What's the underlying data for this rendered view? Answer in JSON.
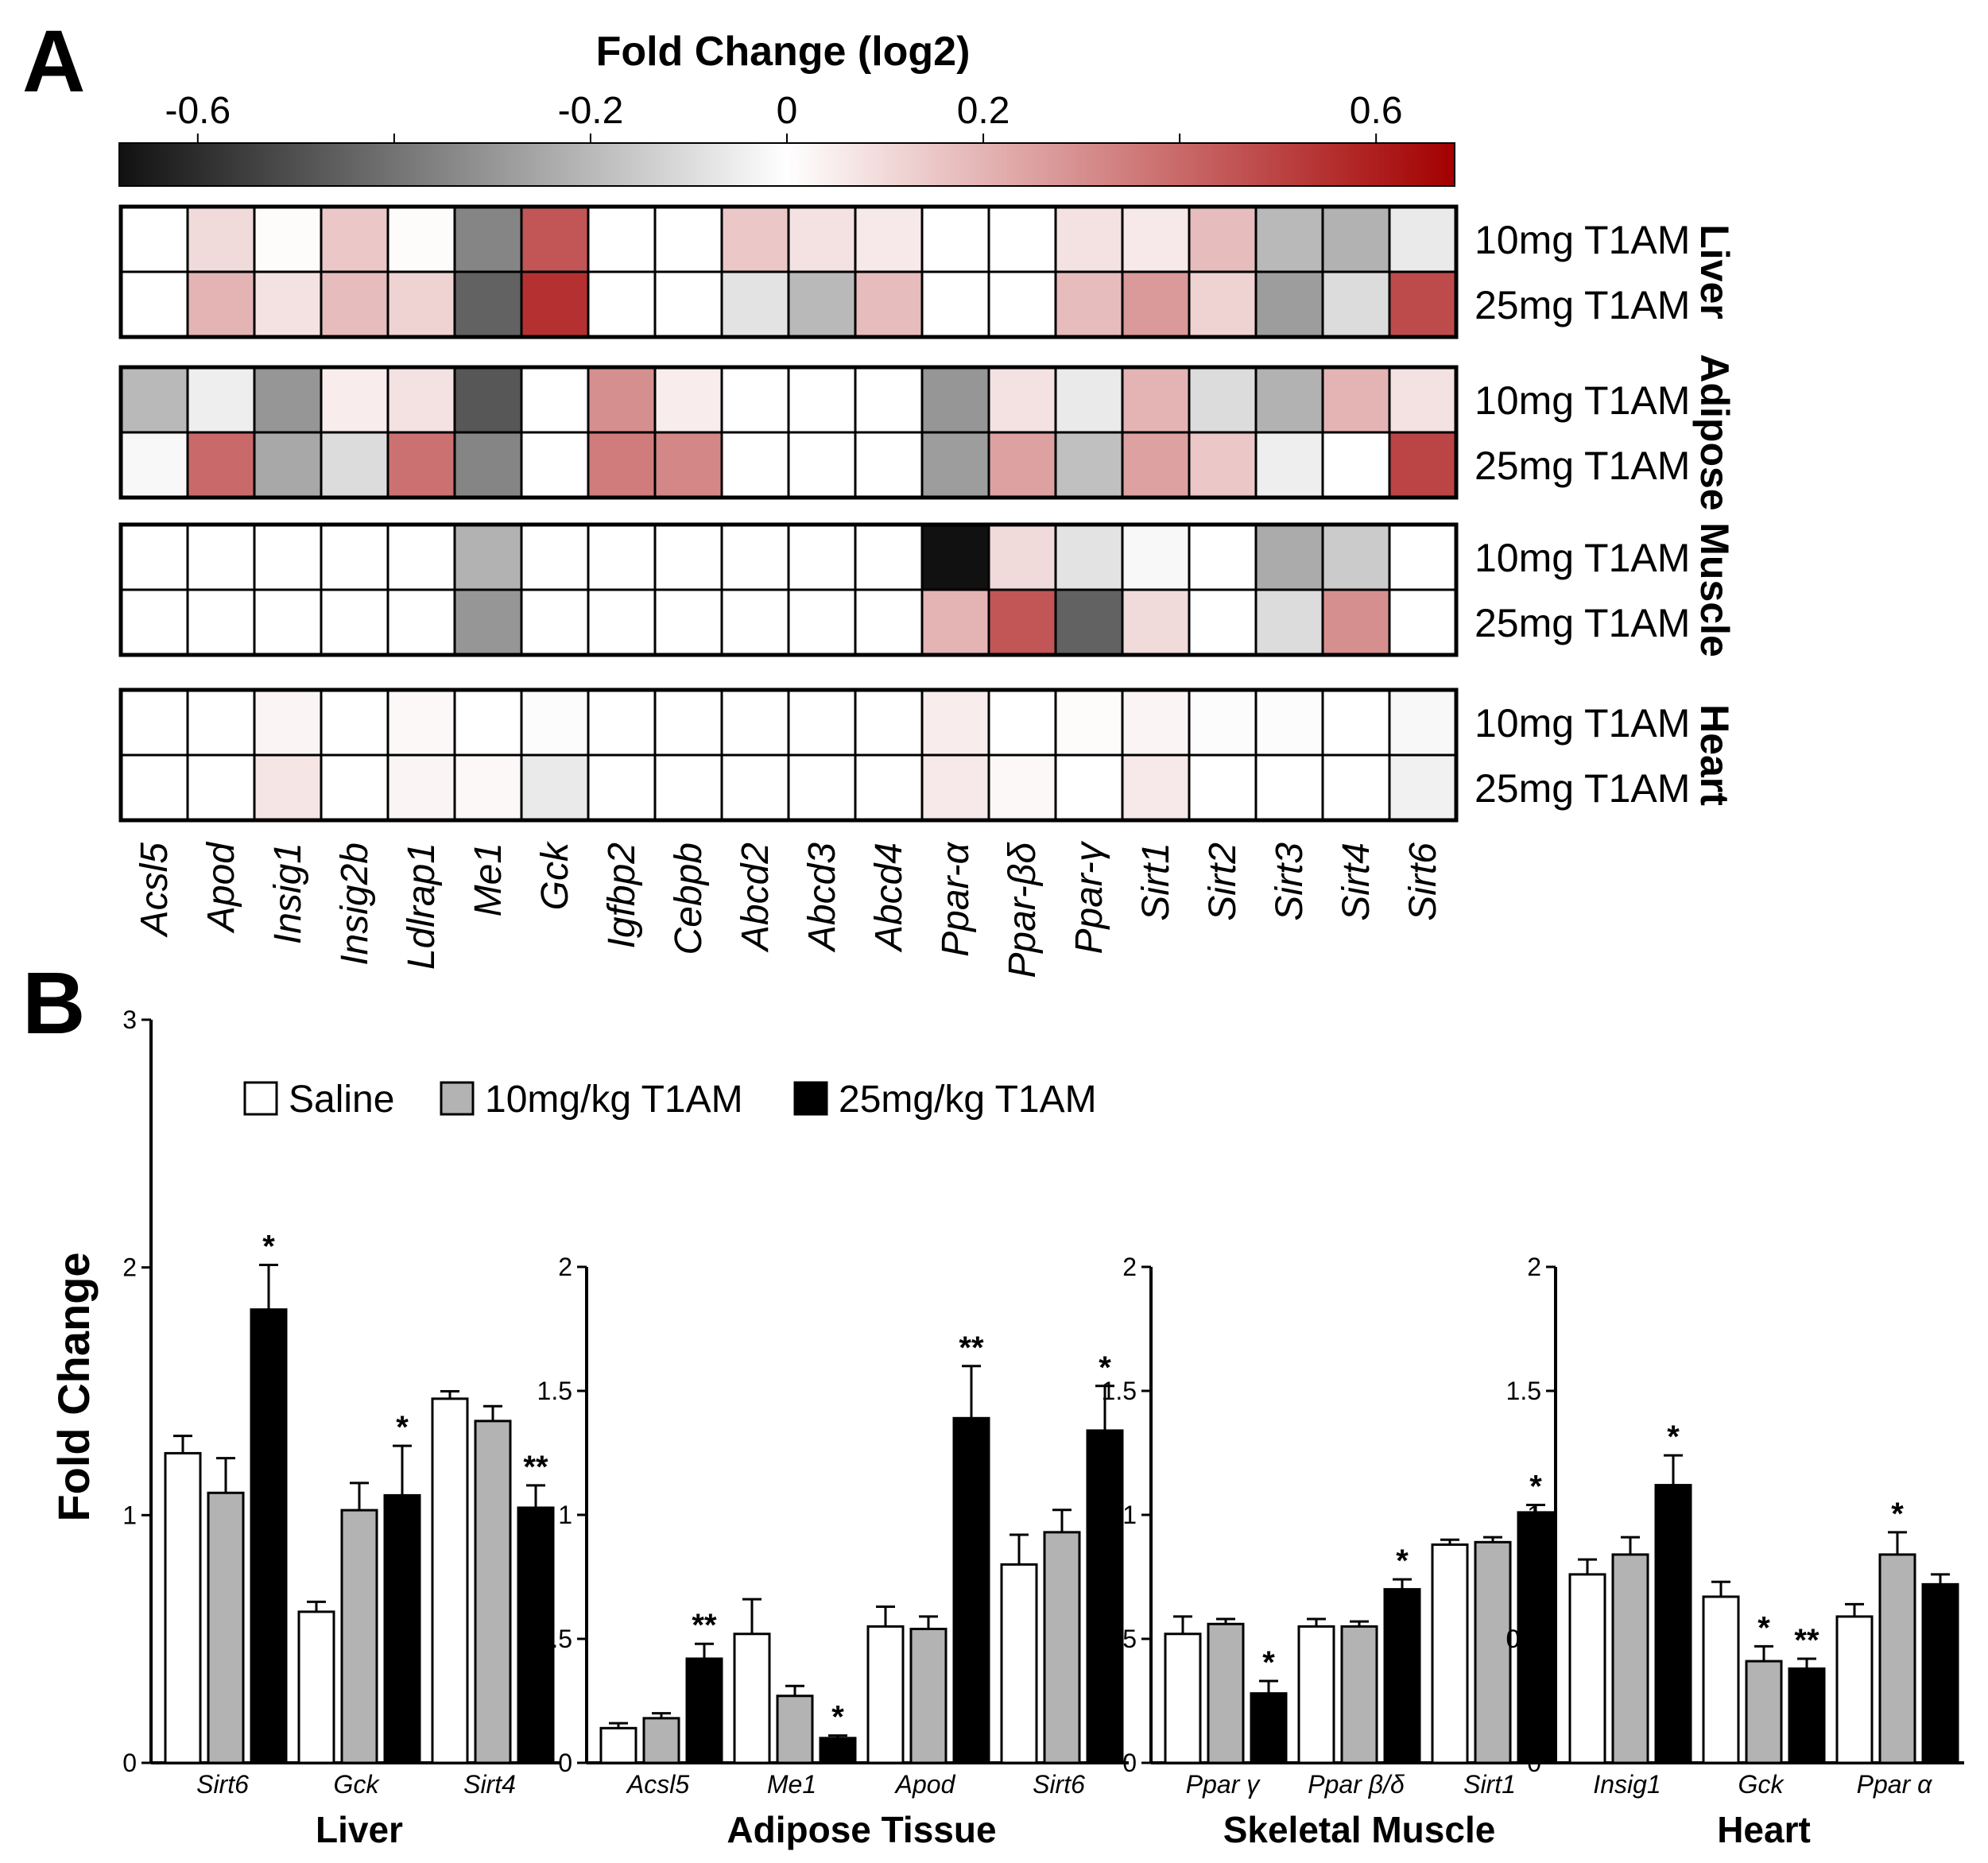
{
  "panel_a_letter": "A",
  "panel_b_letter": "B",
  "chart_data": [
    {
      "type": "heatmap",
      "panel": "A",
      "colorbar": {
        "title": "Fold Change (log2)",
        "range": [
          -0.68,
          0.68
        ],
        "tick_values": [
          -0.6,
          -0.2,
          0,
          0.2,
          0.6
        ],
        "tick_labels": [
          "-0.6",
          "-0.2",
          "0",
          "0.2",
          "0.6"
        ],
        "minor_ticks": [
          -0.4,
          0.4
        ],
        "colors": {
          "low": "#111111",
          "mid": "#ffffff",
          "high": "#a30000"
        }
      },
      "genes": [
        "Acsl5",
        "Apod",
        "Insig1",
        "Insig2b",
        "Ldlrap1",
        "Me1",
        "Gck",
        "Igfbp2",
        "Cebpb",
        "Abcd2",
        "Abcd3",
        "Abcd4",
        "Ppar-α",
        "Ppar-βδ",
        "Ppar-γ",
        "Sirt1",
        "Sirt2",
        "Sirt3",
        "Sirt4",
        "Sirt6"
      ],
      "row_labels": [
        "10mg T1AM",
        "25mg T1AM"
      ],
      "tissues": [
        {
          "name": "Liver",
          "values": [
            [
              0,
              0.1,
              0.01,
              0.15,
              0.01,
              -0.35,
              0.45,
              0,
              0,
              0.15,
              0.08,
              0.06,
              0,
              0,
              0.08,
              0.06,
              0.18,
              -0.2,
              -0.22,
              -0.06
            ],
            [
              0,
              0.2,
              0.08,
              0.18,
              0.12,
              -0.45,
              0.55,
              0,
              0,
              -0.08,
              -0.2,
              0.18,
              0,
              0,
              0.18,
              0.27,
              0.12,
              -0.28,
              -0.1,
              0.48
            ]
          ]
        },
        {
          "name": "Adipose",
          "values": [
            [
              -0.2,
              -0.05,
              -0.3,
              0.05,
              0.08,
              -0.48,
              0,
              0.3,
              0.05,
              0,
              0,
              0,
              -0.3,
              0.08,
              -0.06,
              0.2,
              -0.1,
              -0.22,
              0.2,
              0.08
            ],
            [
              -0.02,
              0.4,
              -0.25,
              -0.1,
              0.38,
              -0.35,
              0,
              0.35,
              0.32,
              0,
              0,
              0,
              -0.28,
              0.25,
              -0.18,
              0.25,
              0.15,
              -0.05,
              0,
              0.5
            ]
          ]
        },
        {
          "name": "Muscle",
          "values": [
            [
              0,
              0,
              0,
              0,
              0,
              -0.22,
              0,
              0,
              0,
              0,
              0,
              0,
              -0.68,
              0.1,
              -0.08,
              -0.02,
              0,
              -0.24,
              -0.15,
              0
            ],
            [
              0,
              0,
              0,
              0,
              0,
              -0.3,
              0,
              0,
              0,
              0,
              0,
              0,
              0.2,
              0.45,
              -0.45,
              0.1,
              0,
              -0.1,
              0.3,
              0
            ]
          ]
        },
        {
          "name": "Heart",
          "values": [
            [
              0,
              0,
              0.03,
              0,
              0.02,
              0,
              -0.01,
              0,
              0,
              0,
              0,
              0,
              0.05,
              0,
              0.01,
              0.03,
              -0.01,
              -0.01,
              0,
              -0.02
            ],
            [
              0,
              0,
              0.07,
              0,
              0.03,
              0.02,
              -0.06,
              0,
              0,
              0,
              0,
              0,
              0.06,
              0.02,
              0,
              0.06,
              0,
              0,
              0,
              -0.04
            ]
          ]
        }
      ]
    },
    {
      "type": "bar",
      "panel": "B",
      "ylabel": "Fold Change",
      "legend": [
        "Saline",
        "10mg/kg T1AM",
        "25mg/kg T1AM"
      ],
      "series_colors": [
        "#ffffff",
        "#b3b3b3",
        "#000000"
      ],
      "groups": [
        {
          "title": "Liver",
          "ylim": [
            0,
            3
          ],
          "yticks": [
            0,
            1,
            2,
            3
          ],
          "ytick_labels": [
            "0",
            "1",
            "2",
            "3"
          ],
          "categories": [
            "Sirt6",
            "Gck",
            "Sirt4"
          ],
          "values": [
            [
              1.25,
              1.09,
              1.83
            ],
            [
              0.61,
              1.02,
              1.08
            ],
            [
              1.47,
              1.38,
              1.03
            ]
          ],
          "errors": [
            [
              0.07,
              0.14,
              0.18
            ],
            [
              0.04,
              0.11,
              0.2
            ],
            [
              0.03,
              0.06,
              0.09
            ]
          ],
          "stars": [
            [
              "",
              "",
              "*"
            ],
            [
              "",
              "",
              "*"
            ],
            [
              "",
              "",
              "**"
            ]
          ]
        },
        {
          "title": "Adipose Tissue",
          "ylim": [
            0,
            2
          ],
          "yticks": [
            0,
            0.5,
            1,
            1.5,
            2
          ],
          "ytick_labels": [
            "0",
            "0.5",
            "1",
            "1.5",
            "2"
          ],
          "categories": [
            "Acsl5",
            "Me1",
            "Apod",
            "Sirt6"
          ],
          "values": [
            [
              0.14,
              0.18,
              0.42
            ],
            [
              0.52,
              0.27,
              0.1
            ],
            [
              0.55,
              0.54,
              1.39
            ],
            [
              0.8,
              0.93,
              1.34
            ]
          ],
          "errors": [
            [
              0.02,
              0.02,
              0.06
            ],
            [
              0.14,
              0.04,
              0.01
            ],
            [
              0.08,
              0.05,
              0.21
            ],
            [
              0.12,
              0.09,
              0.18
            ]
          ],
          "stars": [
            [
              "",
              "",
              "**"
            ],
            [
              "",
              "",
              "*"
            ],
            [
              "",
              "",
              "**"
            ],
            [
              "",
              "",
              "*"
            ]
          ]
        },
        {
          "title": "Skeletal Muscle",
          "ylim": [
            0,
            2
          ],
          "yticks": [
            0,
            0.5,
            1,
            1.5,
            2
          ],
          "ytick_labels": [
            "0",
            "0.5",
            "1",
            "1.5",
            "2"
          ],
          "categories": [
            "Ppar γ",
            "Ppar β/δ",
            "Sirt1"
          ],
          "values": [
            [
              0.52,
              0.56,
              0.28
            ],
            [
              0.55,
              0.55,
              0.7
            ],
            [
              0.88,
              0.89,
              1.01
            ]
          ],
          "errors": [
            [
              0.07,
              0.02,
              0.05
            ],
            [
              0.03,
              0.02,
              0.04
            ],
            [
              0.02,
              0.02,
              0.03
            ]
          ],
          "stars": [
            [
              "",
              "",
              "*"
            ],
            [
              "",
              "",
              "*"
            ],
            [
              "",
              "",
              "*"
            ]
          ]
        },
        {
          "title": "Heart",
          "ylim": [
            0,
            2
          ],
          "yticks": [
            0,
            0.5,
            1,
            1.5,
            2
          ],
          "ytick_labels": [
            "0",
            "0.5",
            "1",
            "1.5",
            "2"
          ],
          "categories": [
            "Insig1",
            "Gck",
            "Ppar α"
          ],
          "values": [
            [
              0.76,
              0.84,
              1.12
            ],
            [
              0.67,
              0.41,
              0.38
            ],
            [
              0.59,
              0.84,
              0.72
            ]
          ],
          "errors": [
            [
              0.06,
              0.07,
              0.12
            ],
            [
              0.06,
              0.06,
              0.04
            ],
            [
              0.05,
              0.09,
              0.04
            ]
          ],
          "stars": [
            [
              "",
              "",
              "*"
            ],
            [
              "",
              "*",
              "**"
            ],
            [
              "",
              "*",
              ""
            ]
          ]
        }
      ]
    }
  ]
}
